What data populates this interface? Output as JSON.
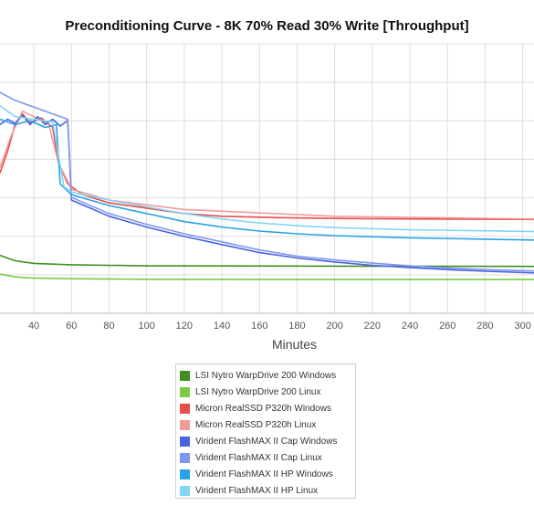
{
  "chart_data": {
    "type": "line",
    "title": "Preconditioning Curve - 8K 70% Read 30% Write [Throughput]",
    "xlabel": "Minutes",
    "ylabel": "",
    "xlim": [
      22,
      306
    ],
    "x_ticks": [
      40,
      60,
      80,
      100,
      120,
      140,
      160,
      180,
      200,
      220,
      240,
      260,
      280,
      300
    ],
    "grid": true,
    "legend_position": "bottom",
    "series": [
      {
        "name": "LSI Nytro WarpDrive 200 Windows",
        "color": "#3f8f1f",
        "points": [
          [
            22,
            0.215
          ],
          [
            30,
            0.195
          ],
          [
            40,
            0.185
          ],
          [
            60,
            0.18
          ],
          [
            100,
            0.176
          ],
          [
            200,
            0.175
          ],
          [
            306,
            0.174
          ]
        ]
      },
      {
        "name": "LSI Nytro WarpDrive 200 Linux",
        "color": "#7ac943",
        "points": [
          [
            22,
            0.145
          ],
          [
            30,
            0.135
          ],
          [
            40,
            0.13
          ],
          [
            60,
            0.128
          ],
          [
            100,
            0.126
          ],
          [
            200,
            0.125
          ],
          [
            306,
            0.125
          ]
        ]
      },
      {
        "name": "Micron RealSSD P320h Windows",
        "color": "#e84c4c",
        "points": [
          [
            22,
            0.52
          ],
          [
            26,
            0.6
          ],
          [
            30,
            0.7
          ],
          [
            34,
            0.74
          ],
          [
            38,
            0.705
          ],
          [
            44,
            0.725
          ],
          [
            50,
            0.69
          ],
          [
            53,
            0.56
          ],
          [
            58,
            0.48
          ],
          [
            66,
            0.44
          ],
          [
            80,
            0.41
          ],
          [
            100,
            0.39
          ],
          [
            120,
            0.37
          ],
          [
            140,
            0.36
          ],
          [
            170,
            0.355
          ],
          [
            200,
            0.352
          ],
          [
            250,
            0.35
          ],
          [
            306,
            0.348
          ]
        ]
      },
      {
        "name": "Micron RealSSD P320h Linux",
        "color": "#f29a9a",
        "points": [
          [
            22,
            0.54
          ],
          [
            28,
            0.66
          ],
          [
            34,
            0.75
          ],
          [
            40,
            0.73
          ],
          [
            48,
            0.7
          ],
          [
            53,
            0.56
          ],
          [
            60,
            0.46
          ],
          [
            80,
            0.42
          ],
          [
            120,
            0.385
          ],
          [
            200,
            0.36
          ],
          [
            306,
            0.35
          ]
        ]
      },
      {
        "name": "Virident FlashMAX II Cap Windows",
        "color": "#4a63e0",
        "points": [
          [
            22,
            0.7
          ],
          [
            26,
            0.72
          ],
          [
            30,
            0.705
          ],
          [
            34,
            0.735
          ],
          [
            38,
            0.7
          ],
          [
            42,
            0.73
          ],
          [
            46,
            0.7
          ],
          [
            50,
            0.72
          ],
          [
            54,
            0.695
          ],
          [
            58,
            0.715
          ],
          [
            60,
            0.42
          ],
          [
            70,
            0.39
          ],
          [
            80,
            0.36
          ],
          [
            100,
            0.32
          ],
          [
            120,
            0.285
          ],
          [
            140,
            0.255
          ],
          [
            160,
            0.225
          ],
          [
            180,
            0.205
          ],
          [
            200,
            0.19
          ],
          [
            220,
            0.178
          ],
          [
            240,
            0.17
          ],
          [
            260,
            0.162
          ],
          [
            280,
            0.156
          ],
          [
            306,
            0.15
          ]
        ]
      },
      {
        "name": "Virident FlashMAX II Cap Linux",
        "color": "#8096f0",
        "points": [
          [
            22,
            0.82
          ],
          [
            30,
            0.79
          ],
          [
            40,
            0.765
          ],
          [
            50,
            0.74
          ],
          [
            58,
            0.72
          ],
          [
            60,
            0.43
          ],
          [
            80,
            0.37
          ],
          [
            100,
            0.33
          ],
          [
            120,
            0.295
          ],
          [
            140,
            0.265
          ],
          [
            160,
            0.235
          ],
          [
            180,
            0.212
          ],
          [
            200,
            0.198
          ],
          [
            220,
            0.186
          ],
          [
            240,
            0.176
          ],
          [
            260,
            0.168
          ],
          [
            280,
            0.162
          ],
          [
            306,
            0.157
          ]
        ]
      },
      {
        "name": "Virident FlashMAX II HP Windows",
        "color": "#2aa3e6",
        "points": [
          [
            22,
            0.72
          ],
          [
            30,
            0.7
          ],
          [
            38,
            0.715
          ],
          [
            46,
            0.69
          ],
          [
            52,
            0.7
          ],
          [
            54,
            0.48
          ],
          [
            60,
            0.44
          ],
          [
            80,
            0.4
          ],
          [
            100,
            0.37
          ],
          [
            120,
            0.34
          ],
          [
            140,
            0.32
          ],
          [
            160,
            0.305
          ],
          [
            180,
            0.295
          ],
          [
            200,
            0.288
          ],
          [
            240,
            0.28
          ],
          [
            280,
            0.275
          ],
          [
            306,
            0.272
          ]
        ]
      },
      {
        "name": "Virident FlashMAX II HP Linux",
        "color": "#7fd7f5",
        "points": [
          [
            22,
            0.77
          ],
          [
            30,
            0.73
          ],
          [
            40,
            0.72
          ],
          [
            50,
            0.71
          ],
          [
            56,
            0.47
          ],
          [
            60,
            0.45
          ],
          [
            80,
            0.42
          ],
          [
            100,
            0.395
          ],
          [
            120,
            0.37
          ],
          [
            140,
            0.35
          ],
          [
            160,
            0.335
          ],
          [
            180,
            0.325
          ],
          [
            200,
            0.318
          ],
          [
            240,
            0.31
          ],
          [
            280,
            0.306
          ],
          [
            306,
            0.303
          ]
        ]
      }
    ]
  }
}
